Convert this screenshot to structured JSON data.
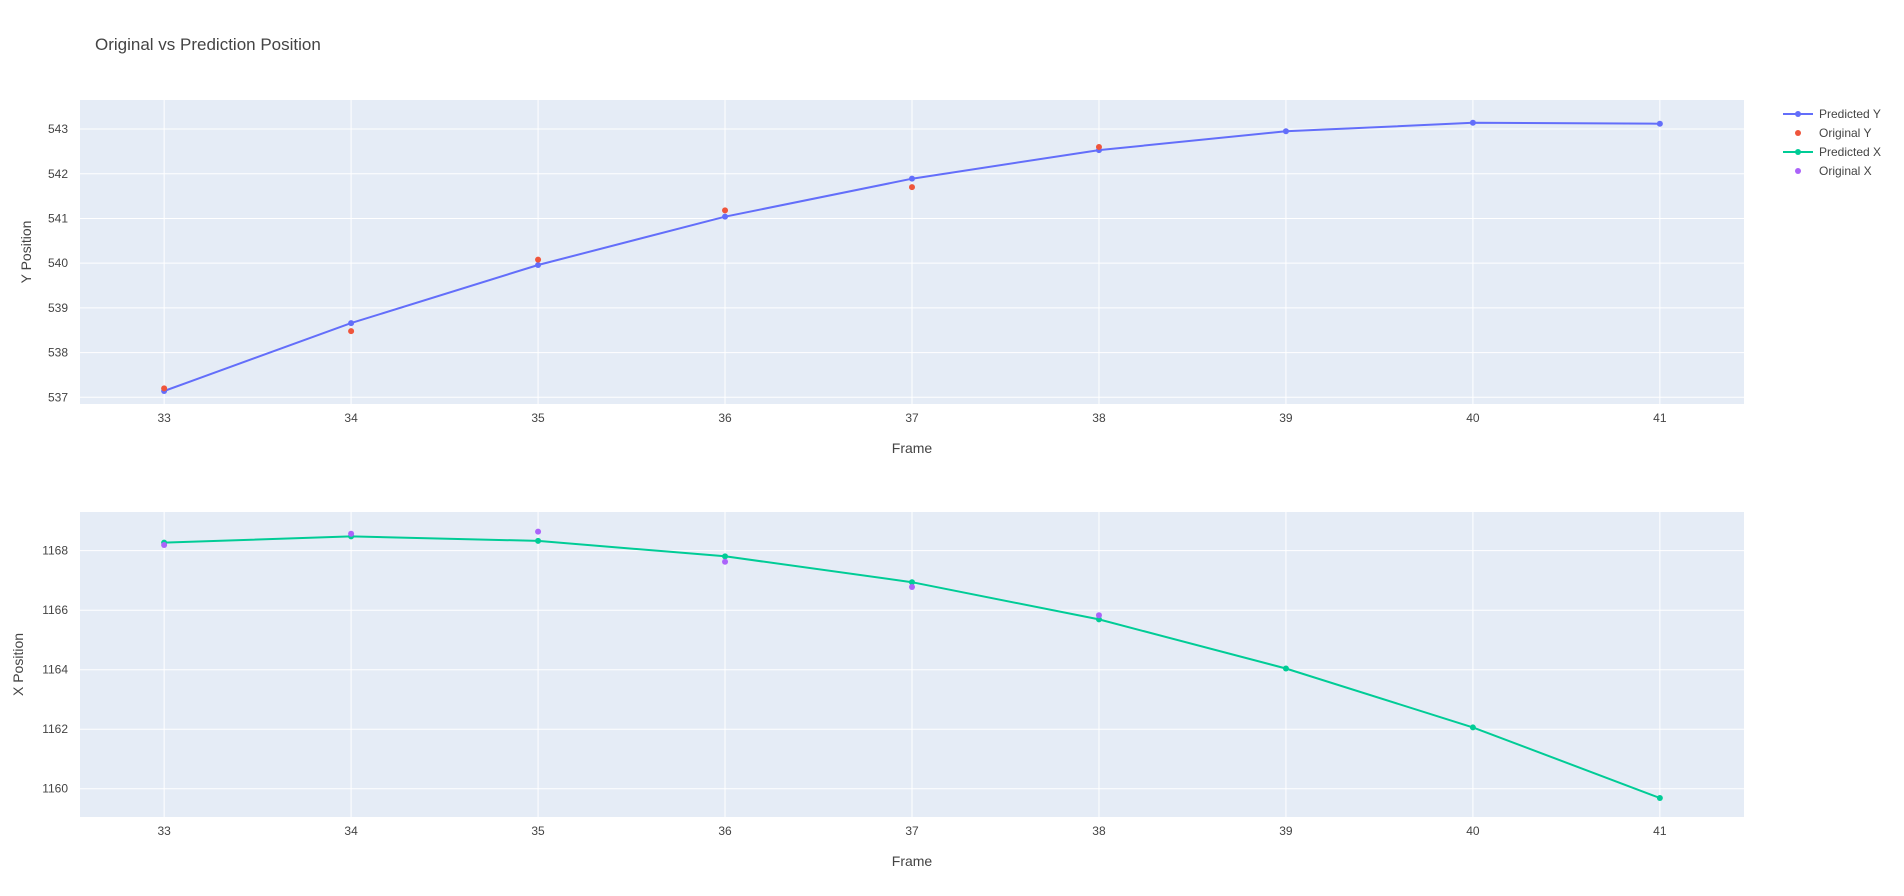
{
  "chart_data": {
    "type": "line",
    "title": "Original vs Prediction Position",
    "legend": {
      "placement": "top-right",
      "entries": [
        {
          "name": "Predicted Y",
          "color": "#636efa",
          "style": "line+markers"
        },
        {
          "name": "Original Y",
          "color": "#ef553b",
          "style": "markers"
        },
        {
          "name": "Predicted X",
          "color": "#00cc96",
          "style": "line+markers"
        },
        {
          "name": "Original X",
          "color": "#ab63fa",
          "style": "markers"
        }
      ]
    },
    "subplots": [
      {
        "xlabel": "Frame",
        "ylabel": "Y Position",
        "xlim": [
          32.55,
          41.45
        ],
        "ylim": [
          536.85,
          543.65
        ],
        "xticks": [
          33,
          34,
          35,
          36,
          37,
          38,
          39,
          40,
          41
        ],
        "yticks": [
          537,
          538,
          539,
          540,
          541,
          542,
          543
        ],
        "grid": true,
        "series": [
          {
            "name": "Predicted Y",
            "mode": "lines+markers",
            "color": "#636efa",
            "x": [
              33,
              34,
              35,
              36,
              37,
              38,
              39,
              40,
              41
            ],
            "y": [
              537.14,
              538.66,
              539.96,
              541.04,
              541.89,
              542.53,
              542.95,
              543.14,
              543.12
            ]
          },
          {
            "name": "Original Y",
            "mode": "markers",
            "color": "#ef553b",
            "x": [
              33,
              34,
              35,
              36,
              37,
              38
            ],
            "y": [
              537.2,
              538.48,
              540.08,
              541.18,
              541.7,
              542.6
            ]
          }
        ]
      },
      {
        "xlabel": "Frame",
        "ylabel": "X Position",
        "xlim": [
          32.55,
          41.45
        ],
        "ylim": [
          1159.05,
          1169.3
        ],
        "xticks": [
          33,
          34,
          35,
          36,
          37,
          38,
          39,
          40,
          41
        ],
        "yticks": [
          1160,
          1162,
          1164,
          1166,
          1168
        ],
        "grid": true,
        "series": [
          {
            "name": "Predicted X",
            "mode": "lines+markers",
            "color": "#00cc96",
            "x": [
              33,
              34,
              35,
              36,
              37,
              38,
              39,
              40,
              41
            ],
            "y": [
              1168.27,
              1168.48,
              1168.33,
              1167.81,
              1166.94,
              1165.69,
              1164.04,
              1162.06,
              1159.69
            ]
          },
          {
            "name": "Original X",
            "mode": "markers",
            "color": "#ab63fa",
            "x": [
              33,
              34,
              35,
              36,
              37,
              38
            ],
            "y": [
              1168.19,
              1168.57,
              1168.64,
              1167.63,
              1166.78,
              1165.83
            ]
          }
        ]
      }
    ],
    "colors": {
      "plot_background": "#e5ecf6",
      "gridline": "#ffffff",
      "text": "#444444"
    }
  }
}
